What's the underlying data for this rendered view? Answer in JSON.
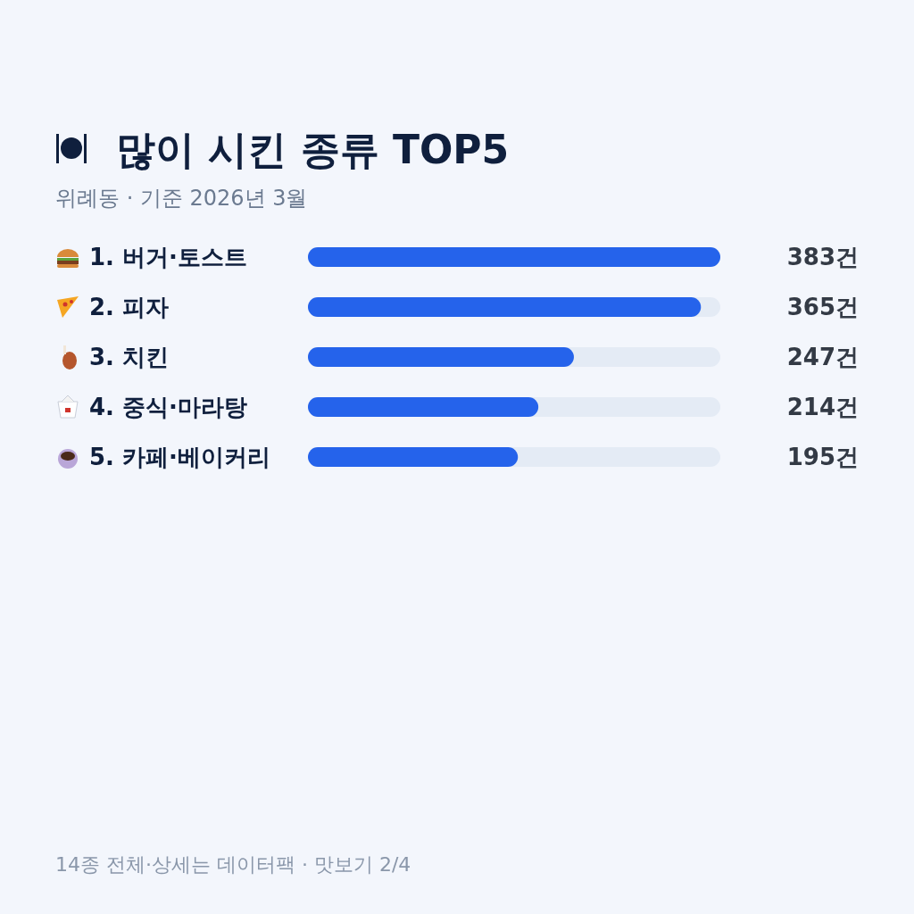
{
  "chart_data": {
    "type": "bar",
    "orientation": "horizontal",
    "title": "많이 시킨 종류 TOP5",
    "subtitle": "위례동 · 기준 2026년 3월",
    "categories": [
      "1. 버거·토스트",
      "2. 피자",
      "3. 치킨",
      "4. 중식·마라탕",
      "5. 카페·베이커리"
    ],
    "values": [
      383,
      365,
      247,
      214,
      195
    ],
    "value_labels": [
      "383건",
      "365건",
      "247건",
      "214건",
      "195건"
    ],
    "color": "#2563eb",
    "annotations": [
      "14종 전체·상세는 데이터팩 · 맛보기 2/4"
    ]
  }
}
